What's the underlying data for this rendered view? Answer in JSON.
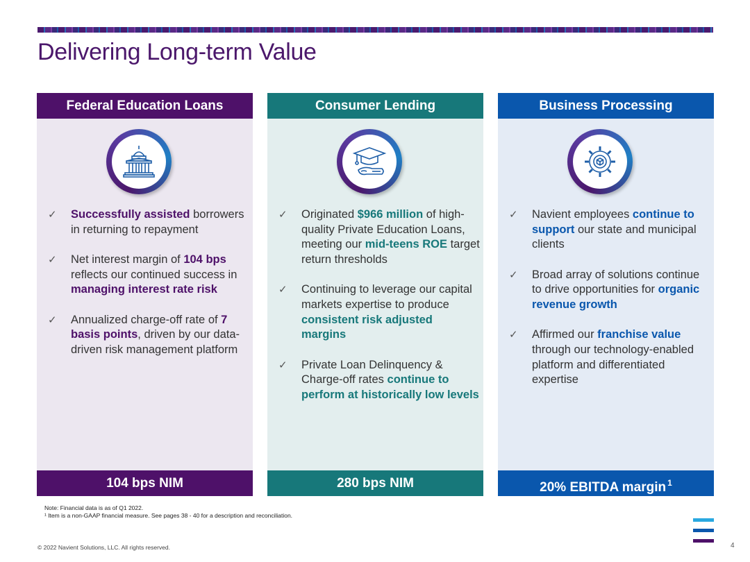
{
  "title": "Delivering Long-term Value",
  "columns": [
    {
      "header": "Federal Education Loans",
      "icon": "capitol-building-icon",
      "bullets": [
        [
          {
            "t": "Successfully assisted",
            "hl": true
          },
          {
            "t": " borrowers in returning to repayment"
          }
        ],
        [
          {
            "t": "Net interest margin of "
          },
          {
            "t": "104 bps",
            "hl": true
          },
          {
            "t": " reflects our continued success in "
          },
          {
            "t": "managing interest rate risk",
            "hl": true
          }
        ],
        [
          {
            "t": "Annualized charge-off rate of "
          },
          {
            "t": "7 basis points",
            "hl": true
          },
          {
            "t": ", driven by our data-driven risk management platform"
          }
        ]
      ],
      "footer": "104 bps NIM",
      "footer_sup": ""
    },
    {
      "header": "Consumer Lending",
      "icon": "graduation-cap-diploma-icon",
      "bullets": [
        [
          {
            "t": "Originated "
          },
          {
            "t": "$966 million",
            "hl": true
          },
          {
            "t": " of high-quality Private Education Loans, meeting our "
          },
          {
            "t": "mid-teens ROE",
            "hl": true
          },
          {
            "t": " target return thresholds"
          }
        ],
        [
          {
            "t": "Continuing to leverage our capital markets expertise to produce "
          },
          {
            "t": "consistent risk adjusted margins",
            "hl": true
          }
        ],
        [
          {
            "t": "Private Loan Delinquency & Charge-off rates "
          },
          {
            "t": "continue to perform at historically low levels",
            "hl": true
          }
        ]
      ],
      "footer": "280 bps NIM",
      "footer_sup": ""
    },
    {
      "header": "Business Processing",
      "icon": "gear-network-icon",
      "bullets": [
        [
          {
            "t": "Navient employees "
          },
          {
            "t": "continue to support",
            "hl": true
          },
          {
            "t": " our state and municipal clients"
          }
        ],
        [
          {
            "t": "Broad array of solutions continue to drive opportunities for "
          },
          {
            "t": "organic revenue growth",
            "hl": true
          }
        ],
        [
          {
            "t": "Affirmed our "
          },
          {
            "t": "franchise value",
            "hl": true
          },
          {
            "t": " through our technology-enabled platform and differentiated expertise"
          }
        ]
      ],
      "footer": "20% EBITDA margin",
      "footer_sup": "1"
    }
  ],
  "notes": [
    "Note: Financial data is as of Q1 2022.",
    "¹ Item is a non-GAAP financial measure.  See pages 38 - 40 for a description and reconciliation."
  ],
  "copyright": "© 2022 Navient Solutions, LLC. All rights reserved.",
  "page_number": "4",
  "colors": {
    "purple": "#4e1169",
    "teal": "#17787a",
    "blue": "#0a57ad",
    "logo_cyan": "#29a8e0"
  },
  "check_glyph": "✓"
}
